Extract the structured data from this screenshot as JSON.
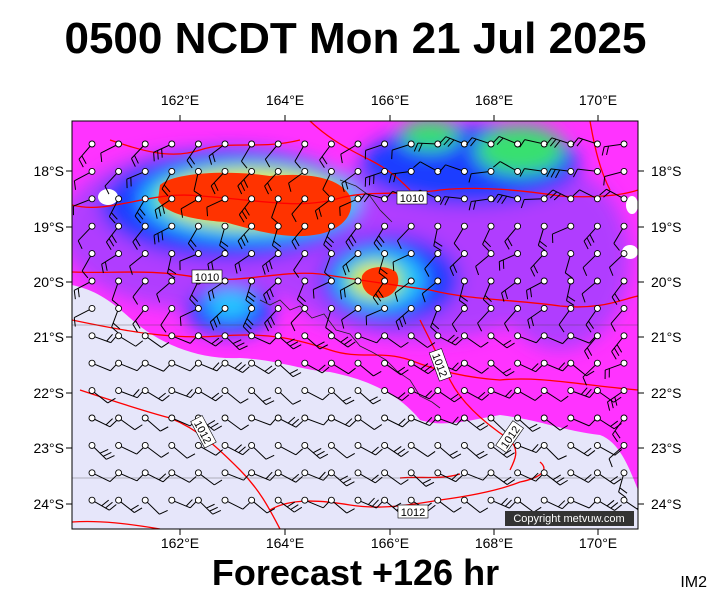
{
  "title": "0500 NCDT Mon 21 Jul 2025",
  "footer": "Forecast +126 hr",
  "tag": "IM2",
  "copyright": "Copyright metvuw.com",
  "lon_labels": [
    "162°E",
    "164°E",
    "166°E",
    "168°E",
    "170°E"
  ],
  "lat_labels": [
    "18°S",
    "19°S",
    "20°S",
    "21°S",
    "22°S",
    "23°S",
    "24°S"
  ],
  "isobar_labels": [
    "1010",
    "1010",
    "1012",
    "1012",
    "1012",
    "1012"
  ],
  "colors": {
    "magenta": "#ff33ff",
    "violet": "#b03cff",
    "blue": "#1f3cff",
    "cyan": "#26c6ff",
    "green": "#38e070",
    "yellow": "#ffee22",
    "orange": "#ff8c1a",
    "red": "#ff3300",
    "land": "#e6e6fa",
    "isobar": "#ff0000"
  }
}
